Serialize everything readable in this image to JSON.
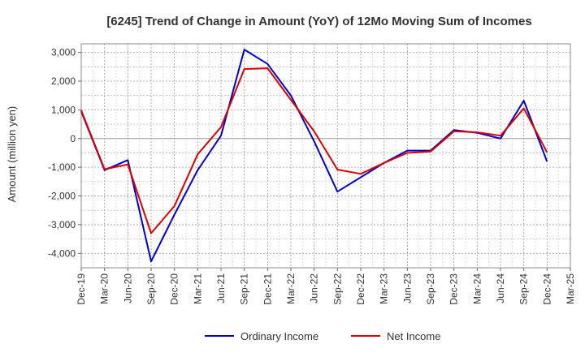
{
  "chart_data": {
    "type": "line",
    "title": "[6245]  Trend of Change in Amount (YoY) of 12Mo Moving Sum of Incomes",
    "ylabel": "Amount (million yen)",
    "xlabel": "",
    "ylim": [
      -4500,
      3300
    ],
    "yticks": [
      3000,
      2000,
      1000,
      0,
      -1000,
      -2000,
      -3000,
      -4000
    ],
    "ytick_labels": [
      "3,000",
      "2,000",
      "1,000",
      "0",
      "-1,000",
      "-2,000",
      "-3,000",
      "-4,000"
    ],
    "x_tick_labels": [
      "Dec-19",
      "Mar-20",
      "Jun-20",
      "Sep-20",
      "Dec-20",
      "Mar-21",
      "Jun-21",
      "Sep-21",
      "Dec-21",
      "Mar-22",
      "Jun-22",
      "Sep-22",
      "Dec-22",
      "Mar-23",
      "Jun-23",
      "Sep-23",
      "Dec-23",
      "Mar-24",
      "Jun-24",
      "Sep-24",
      "Dec-24",
      "Mar-25"
    ],
    "categories": [
      "Dec-19",
      "Mar-20",
      "Jun-20",
      "Sep-20",
      "Dec-20",
      "Mar-21",
      "Jun-21",
      "Sep-21",
      "Dec-21",
      "Mar-22",
      "Jun-22",
      "Sep-22",
      "Dec-22",
      "Mar-23",
      "Jun-23",
      "Sep-23",
      "Dec-23",
      "Mar-24",
      "Jun-24",
      "Sep-24",
      "Dec-24"
    ],
    "series": [
      {
        "name": "Ordinary Income",
        "color": "#0000cc",
        "values": [
          950,
          -1100,
          -750,
          -4280,
          -2650,
          -1100,
          100,
          3100,
          2600,
          1500,
          -100,
          -1850,
          -1350,
          -850,
          -420,
          -420,
          300,
          200,
          0,
          1320,
          -800
        ]
      },
      {
        "name": "Net Income",
        "color": "#dd0000",
        "values": [
          980,
          -1070,
          -900,
          -3300,
          -2350,
          -550,
          400,
          2420,
          2450,
          1350,
          250,
          -1080,
          -1230,
          -850,
          -500,
          -450,
          250,
          220,
          100,
          1050,
          -480
        ]
      }
    ],
    "grid": true,
    "legend_position": "bottom"
  }
}
